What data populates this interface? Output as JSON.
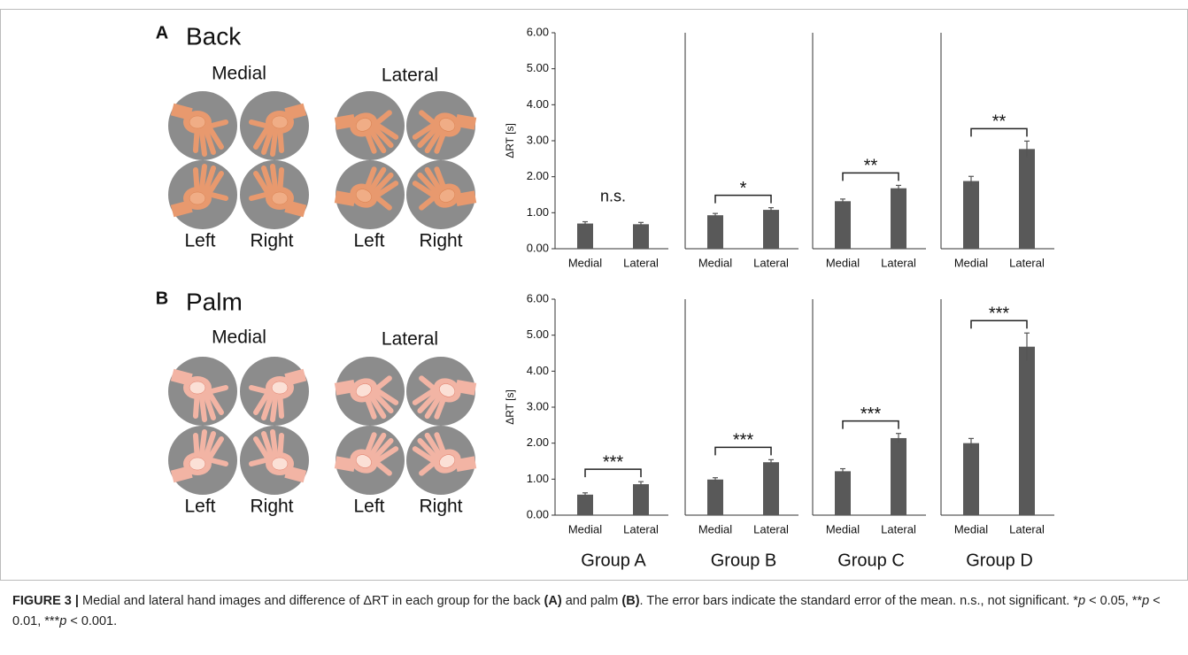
{
  "panels": [
    {
      "letter": "A",
      "title": "Back",
      "hand_labels": [
        "Medial",
        "Lateral",
        "Left",
        "Right",
        "Left",
        "Right"
      ]
    },
    {
      "letter": "B",
      "title": "Palm",
      "hand_labels": [
        "Medial",
        "Lateral",
        "Left",
        "Right",
        "Left",
        "Right"
      ]
    }
  ],
  "groups": [
    "Group A",
    "Group B",
    "Group C",
    "Group D"
  ],
  "chart_data": [
    {
      "type": "bar",
      "categories": [
        "Medial",
        "Lateral"
      ],
      "values": [
        0.7,
        0.68
      ],
      "errors": [
        0.05,
        0.05
      ],
      "color": "#595959",
      "ylim": [
        0,
        6
      ],
      "ylabel": "ΔRT [s]",
      "yticks": [
        {
          "value": 0,
          "label": "0.00"
        },
        {
          "value": 1,
          "label": "1.00"
        },
        {
          "value": 2,
          "label": "2.00"
        },
        {
          "value": 3,
          "label": "3.00"
        },
        {
          "value": 4,
          "label": "4.00"
        },
        {
          "value": 5,
          "label": "5.00"
        },
        {
          "value": 6,
          "label": "6.00"
        }
      ],
      "significance": {
        "label": "n.s.",
        "bracket": false
      }
    },
    {
      "type": "bar",
      "categories": [
        "Medial",
        "Lateral"
      ],
      "values": [
        0.93,
        1.08
      ],
      "errors": [
        0.05,
        0.06
      ],
      "color": "#595959",
      "ylim": [
        0,
        6
      ],
      "significance": {
        "label": "*",
        "bracket": true
      }
    },
    {
      "type": "bar",
      "categories": [
        "Medial",
        "Lateral"
      ],
      "values": [
        1.32,
        1.68
      ],
      "errors": [
        0.06,
        0.08
      ],
      "color": "#595959",
      "ylim": [
        0,
        6
      ],
      "significance": {
        "label": "**",
        "bracket": true
      }
    },
    {
      "type": "bar",
      "categories": [
        "Medial",
        "Lateral"
      ],
      "values": [
        1.88,
        2.77
      ],
      "errors": [
        0.13,
        0.22
      ],
      "color": "#595959",
      "ylim": [
        0,
        6
      ],
      "significance": {
        "label": "**",
        "bracket": true
      }
    },
    {
      "type": "bar",
      "categories": [
        "Medial",
        "Lateral"
      ],
      "values": [
        0.57,
        0.86
      ],
      "errors": [
        0.05,
        0.07
      ],
      "color": "#595959",
      "ylim": [
        0,
        6
      ],
      "ylabel": "ΔRT [s]",
      "yticks": [
        {
          "value": 0,
          "label": "0.00"
        },
        {
          "value": 1,
          "label": "1.00"
        },
        {
          "value": 2,
          "label": "2.00"
        },
        {
          "value": 3,
          "label": "3.00"
        },
        {
          "value": 4,
          "label": "4.00"
        },
        {
          "value": 5,
          "label": "5.00"
        },
        {
          "value": 6,
          "label": "6.00"
        }
      ],
      "significance": {
        "label": "***",
        "bracket": true
      }
    },
    {
      "type": "bar",
      "categories": [
        "Medial",
        "Lateral"
      ],
      "values": [
        0.99,
        1.47
      ],
      "errors": [
        0.05,
        0.07
      ],
      "color": "#595959",
      "ylim": [
        0,
        6
      ],
      "significance": {
        "label": "***",
        "bracket": true
      }
    },
    {
      "type": "bar",
      "categories": [
        "Medial",
        "Lateral"
      ],
      "values": [
        1.22,
        2.14
      ],
      "errors": [
        0.07,
        0.13
      ],
      "color": "#595959",
      "ylim": [
        0,
        6
      ],
      "significance": {
        "label": "***",
        "bracket": true
      }
    },
    {
      "type": "bar",
      "categories": [
        "Medial",
        "Lateral"
      ],
      "values": [
        2.0,
        4.68
      ],
      "errors": [
        0.13,
        0.38
      ],
      "color": "#595959",
      "ylim": [
        0,
        6
      ],
      "significance": {
        "label": "***",
        "bracket": true
      }
    }
  ],
  "caption": [
    "FIGURE 3 | ",
    "Medial and lateral hand images and difference of ΔRT in each group for the back ",
    "(A)",
    " and palm ",
    "(B)",
    ". The error bars indicate the standard error of the mean. n.s., not significant. *",
    "p",
    " < 0.05, **",
    "p",
    " < 0.01, ***",
    "p",
    " < 0.001."
  ]
}
